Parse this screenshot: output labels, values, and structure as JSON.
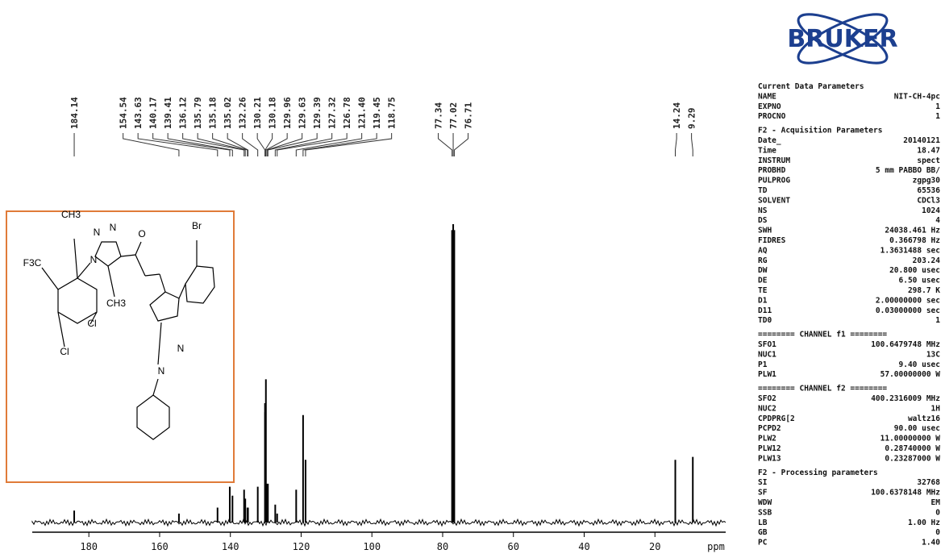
{
  "chart_data": {
    "type": "spectrum",
    "x": [
      184.14,
      154.54,
      143.63,
      140.17,
      139.41,
      136.12,
      135.79,
      135.18,
      135.02,
      132.26,
      130.21,
      130.18,
      129.96,
      129.63,
      129.39,
      127.32,
      126.78,
      121.4,
      119.45,
      118.75,
      77.34,
      77.02,
      76.71,
      14.24,
      9.29
    ],
    "peak_labels": [
      "184.14",
      "154.54",
      "143.63",
      "140.17",
      "139.41",
      "136.12",
      "135.79",
      "135.18",
      "135.02",
      "132.26",
      "130.21",
      "130.18",
      "129.96",
      "129.63",
      "129.39",
      "127.32",
      "126.78",
      "121.40",
      "119.45",
      "118.75",
      "77.34",
      "77.02",
      "76.71",
      "14.24",
      "9.29"
    ],
    "values": [
      4,
      3,
      5,
      12,
      9,
      11,
      8,
      5,
      5,
      12,
      40,
      37,
      48,
      13,
      13,
      6,
      3,
      11,
      36,
      21,
      98,
      100,
      98,
      21,
      22
    ],
    "color": "#000000",
    "xlim": [
      196,
      0
    ],
    "xticks": [
      180,
      160,
      140,
      120,
      100,
      80,
      60,
      40,
      20
    ],
    "x_label": "ppm",
    "ylim": [
      0,
      100
    ]
  },
  "structure": {
    "labels": [
      "CH3",
      "N",
      "N",
      "O",
      "Br",
      "F3C",
      "N",
      "CH3",
      "Cl",
      "Cl",
      "N",
      "N"
    ]
  },
  "bruker": {
    "logo": "BRUKER",
    "rows": [
      [
        "Current Data Parameters",
        ""
      ],
      [
        "NAME",
        "NIT-CH-4pc"
      ],
      [
        "EXPNO",
        "1"
      ],
      [
        "PROCNO",
        "1"
      ],
      [
        "F2 - Acquisition Parameters",
        ""
      ],
      [
        "Date_",
        "20140121"
      ],
      [
        "Time",
        "18.47"
      ],
      [
        "INSTRUM",
        "spect"
      ],
      [
        "PROBHD",
        "5 mm PABBO BB/"
      ],
      [
        "PULPROG",
        "zgpg30"
      ],
      [
        "TD",
        "65536"
      ],
      [
        "SOLVENT",
        "CDCl3"
      ],
      [
        "NS",
        "1024"
      ],
      [
        "DS",
        "4"
      ],
      [
        "SWH",
        "24038.461 Hz"
      ],
      [
        "FIDRES",
        "0.366798 Hz"
      ],
      [
        "AQ",
        "1.3631488 sec"
      ],
      [
        "RG",
        "203.24"
      ],
      [
        "DW",
        "20.800 usec"
      ],
      [
        "DE",
        "6.50 usec"
      ],
      [
        "TE",
        "298.7 K"
      ],
      [
        "D1",
        "2.00000000 sec"
      ],
      [
        "D11",
        "0.03000000 sec"
      ],
      [
        "TD0",
        "1"
      ],
      [
        "======== CHANNEL f1 ========",
        ""
      ],
      [
        "SFO1",
        "100.6479748 MHz"
      ],
      [
        "NUC1",
        "13C"
      ],
      [
        "P1",
        "9.40 usec"
      ],
      [
        "PLW1",
        "57.00000000 W"
      ],
      [
        "======== CHANNEL f2 ========",
        ""
      ],
      [
        "SFO2",
        "400.2316009 MHz"
      ],
      [
        "NUC2",
        "1H"
      ],
      [
        "CPDPRG[2",
        "waltz16"
      ],
      [
        "PCPD2",
        "90.00 usec"
      ],
      [
        "PLW2",
        "11.00000000 W"
      ],
      [
        "PLW12",
        "0.28740000 W"
      ],
      [
        "PLW13",
        "0.23287000 W"
      ],
      [
        "F2 - Processing parameters",
        ""
      ],
      [
        "SI",
        "32768"
      ],
      [
        "SF",
        "100.6378148 MHz"
      ],
      [
        "WDW",
        "EM"
      ],
      [
        "SSB",
        "0"
      ],
      [
        "LB",
        "1.00 Hz"
      ],
      [
        "GB",
        "0"
      ],
      [
        "PC",
        "1.40"
      ]
    ]
  }
}
